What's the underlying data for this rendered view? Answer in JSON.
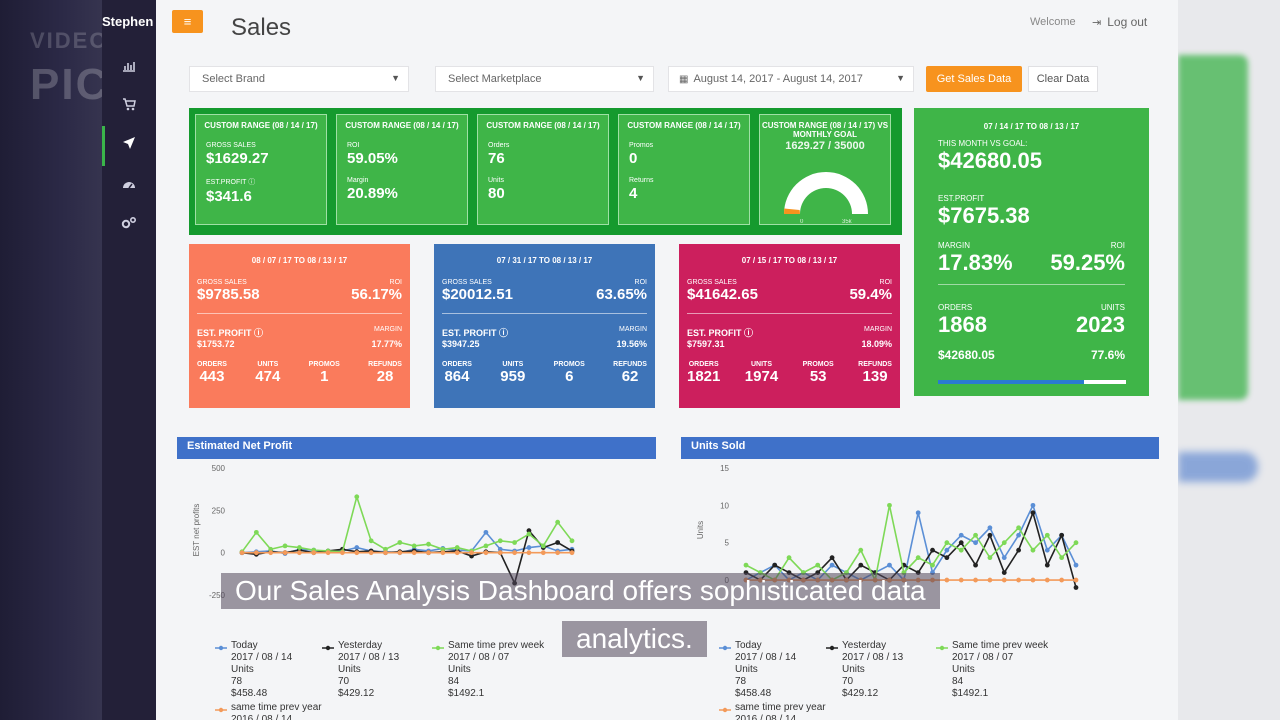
{
  "watermark": {
    "line1": "VIDEO MARKETING",
    "line2": "PICTO"
  },
  "sidebar": {
    "brand": "Stephen",
    "icons": [
      "chart-icon",
      "cart-icon",
      "rocket-icon",
      "dashboard-icon",
      "settings-icon"
    ]
  },
  "header": {
    "menu_label": "≡",
    "title": "Sales",
    "welcome": "Welcome",
    "logout": "Log out"
  },
  "filters": {
    "brand": "Select Brand",
    "marketplace": "Select Marketplace",
    "date_range": "August 14, 2017 - August 14, 2017",
    "get_btn": "Get Sales Data",
    "clear_btn": "Clear Data"
  },
  "mini_cards": [
    {
      "title": "CUSTOM RANGE (08 / 14 / 17)",
      "l1": "GROSS SALES",
      "v1": "$1629.27",
      "l2": "EST.PROFIT",
      "v2": "$341.6"
    },
    {
      "title": "CUSTOM RANGE (08 / 14 / 17)",
      "l1": "ROI",
      "v1": "59.05%",
      "l2": "Margin",
      "v2": "20.89%"
    },
    {
      "title": "CUSTOM RANGE (08 / 14 / 17)",
      "l1": "Orders",
      "v1": "76",
      "l2": "Units",
      "v2": "80"
    },
    {
      "title": "CUSTOM RANGE (08 / 14 / 17)",
      "l1": "Promos",
      "v1": "0",
      "l2": "Returns",
      "v2": "4"
    }
  ],
  "goal_card": {
    "title": "CUSTOM RANGE (08 / 14 / 17) VS MONTHLY GOAL",
    "value": "1629.27 / 35000",
    "min": "0",
    "max": "35k"
  },
  "month_card": {
    "title": "07 / 14 / 17 TO 08 / 13 / 17",
    "goal_label": "THIS MONTH VS GOAL:",
    "goal_value": "$42680.05",
    "profit_label": "EST.PROFIT",
    "profit_value": "$7675.38",
    "margin_label": "MARGIN",
    "margin_value": "17.83%",
    "roi_label": "ROI",
    "roi_value": "59.25%",
    "orders_label": "ORDERS",
    "orders_value": "1868",
    "units_label": "UNITS",
    "units_value": "2023",
    "bottom_left": "$42680.05",
    "bottom_right": "77.6%"
  },
  "period_cards": [
    {
      "title": "08 / 07 / 17 TO 08 / 13 / 17",
      "gross": "$9785.58",
      "roi": "56.17%",
      "profit": "$1753.72",
      "margin": "17.77%",
      "orders": "443",
      "units": "474",
      "promos": "1",
      "refunds": "28"
    },
    {
      "title": "07 / 31 / 17 TO 08 / 13 / 17",
      "gross": "$20012.51",
      "roi": "63.65%",
      "profit": "$3947.25",
      "margin": "19.56%",
      "orders": "864",
      "units": "959",
      "promos": "6",
      "refunds": "62"
    },
    {
      "title": "07 / 15 / 17 TO 08 / 13 / 17",
      "gross": "$41642.65",
      "roi": "59.4%",
      "profit": "$7597.31",
      "margin": "18.09%",
      "orders": "1821",
      "units": "1974",
      "promos": "53",
      "refunds": "139"
    }
  ],
  "card_labels": {
    "gross": "GROSS SALES",
    "roi": "ROI",
    "profit": "EST. PROFIT",
    "margin": "MARGIN",
    "orders": "ORDERS",
    "units": "UNITS",
    "promos": "PROMOS",
    "refunds": "REFUNDS"
  },
  "colors": {
    "orange": "#fa7b5c",
    "blue": "#3e74b8",
    "red": "#cc1f5d",
    "green": "#3fb548"
  },
  "chart_data": [
    {
      "type": "line",
      "title": "Estimated Net Profit",
      "ylabel": "EST net profits",
      "ylim": [
        -250,
        500
      ],
      "yticks": [
        "500",
        "250",
        "0",
        "-250"
      ],
      "series": [
        {
          "name": "Today",
          "color": "#5b8fd6",
          "values": [
            0,
            5,
            10,
            -5,
            20,
            15,
            5,
            10,
            30,
            10,
            5,
            0,
            20,
            10,
            25,
            15,
            10,
            120,
            20,
            10,
            30,
            40,
            10,
            20
          ]
        },
        {
          "name": "Yesterday",
          "color": "#222222",
          "values": [
            0,
            -10,
            5,
            0,
            15,
            0,
            10,
            20,
            5,
            10,
            0,
            5,
            10,
            0,
            5,
            10,
            -20,
            5,
            0,
            -180,
            130,
            30,
            60,
            10
          ]
        },
        {
          "name": "Same time prev week",
          "color": "#7ed957",
          "values": [
            5,
            120,
            20,
            40,
            30,
            15,
            10,
            5,
            330,
            70,
            20,
            60,
            40,
            50,
            20,
            30,
            10,
            40,
            70,
            60,
            110,
            40,
            180,
            70
          ]
        },
        {
          "name": "same time prev year",
          "color": "#f39a5a",
          "values": [
            0,
            0,
            0,
            0,
            0,
            0,
            0,
            0,
            0,
            0,
            0,
            0,
            0,
            0,
            0,
            0,
            0,
            0,
            0,
            0,
            0,
            0,
            0,
            0
          ]
        }
      ]
    },
    {
      "type": "line",
      "title": "Units Sold",
      "ylabel": "Units",
      "ylim": [
        -2,
        15
      ],
      "yticks": [
        "15",
        "10",
        "5",
        "0"
      ],
      "series": [
        {
          "name": "Today",
          "color": "#5b8fd6",
          "values": [
            0,
            1,
            2,
            0,
            1,
            0,
            2,
            1,
            0,
            1,
            2,
            0,
            9,
            1,
            4,
            6,
            5,
            7,
            3,
            6,
            10,
            4,
            6,
            2
          ]
        },
        {
          "name": "Yesterday",
          "color": "#222222",
          "values": [
            1,
            0,
            2,
            1,
            0,
            1,
            3,
            0,
            2,
            1,
            0,
            2,
            1,
            4,
            3,
            5,
            2,
            6,
            1,
            4,
            9,
            2,
            6,
            -1
          ]
        },
        {
          "name": "Same time prev week",
          "color": "#7ed957",
          "values": [
            2,
            1,
            0,
            3,
            1,
            2,
            0,
            1,
            4,
            0,
            10,
            1,
            3,
            2,
            5,
            4,
            6,
            3,
            5,
            7,
            4,
            6,
            3,
            5
          ]
        },
        {
          "name": "same time prev year",
          "color": "#f39a5a",
          "values": [
            0,
            0,
            0,
            0,
            0,
            0,
            0,
            0,
            0,
            0,
            0,
            0,
            0,
            0,
            0,
            0,
            0,
            0,
            0,
            0,
            0,
            0,
            0,
            0
          ]
        }
      ]
    }
  ],
  "legend": {
    "today": {
      "name": "Today",
      "date": "2017 / 08 / 14",
      "units_label": "Units",
      "units": "78",
      "amount": "$458.48"
    },
    "yesterday": {
      "name": "Yesterday",
      "date": "2017 / 08 / 13",
      "units_label": "Units",
      "units": "70",
      "amount": "$429.12"
    },
    "prev_week": {
      "name": "Same time prev week",
      "date": "2017 / 08 / 07",
      "units_label": "Units",
      "units": "84",
      "amount": "$1492.1"
    },
    "prev_year": {
      "name": "same time prev year",
      "date": "2016 / 08 / 14"
    }
  },
  "caption": {
    "line1": "Our Sales Analysis Dashboard offers sophisticated data",
    "line2": "analytics."
  }
}
